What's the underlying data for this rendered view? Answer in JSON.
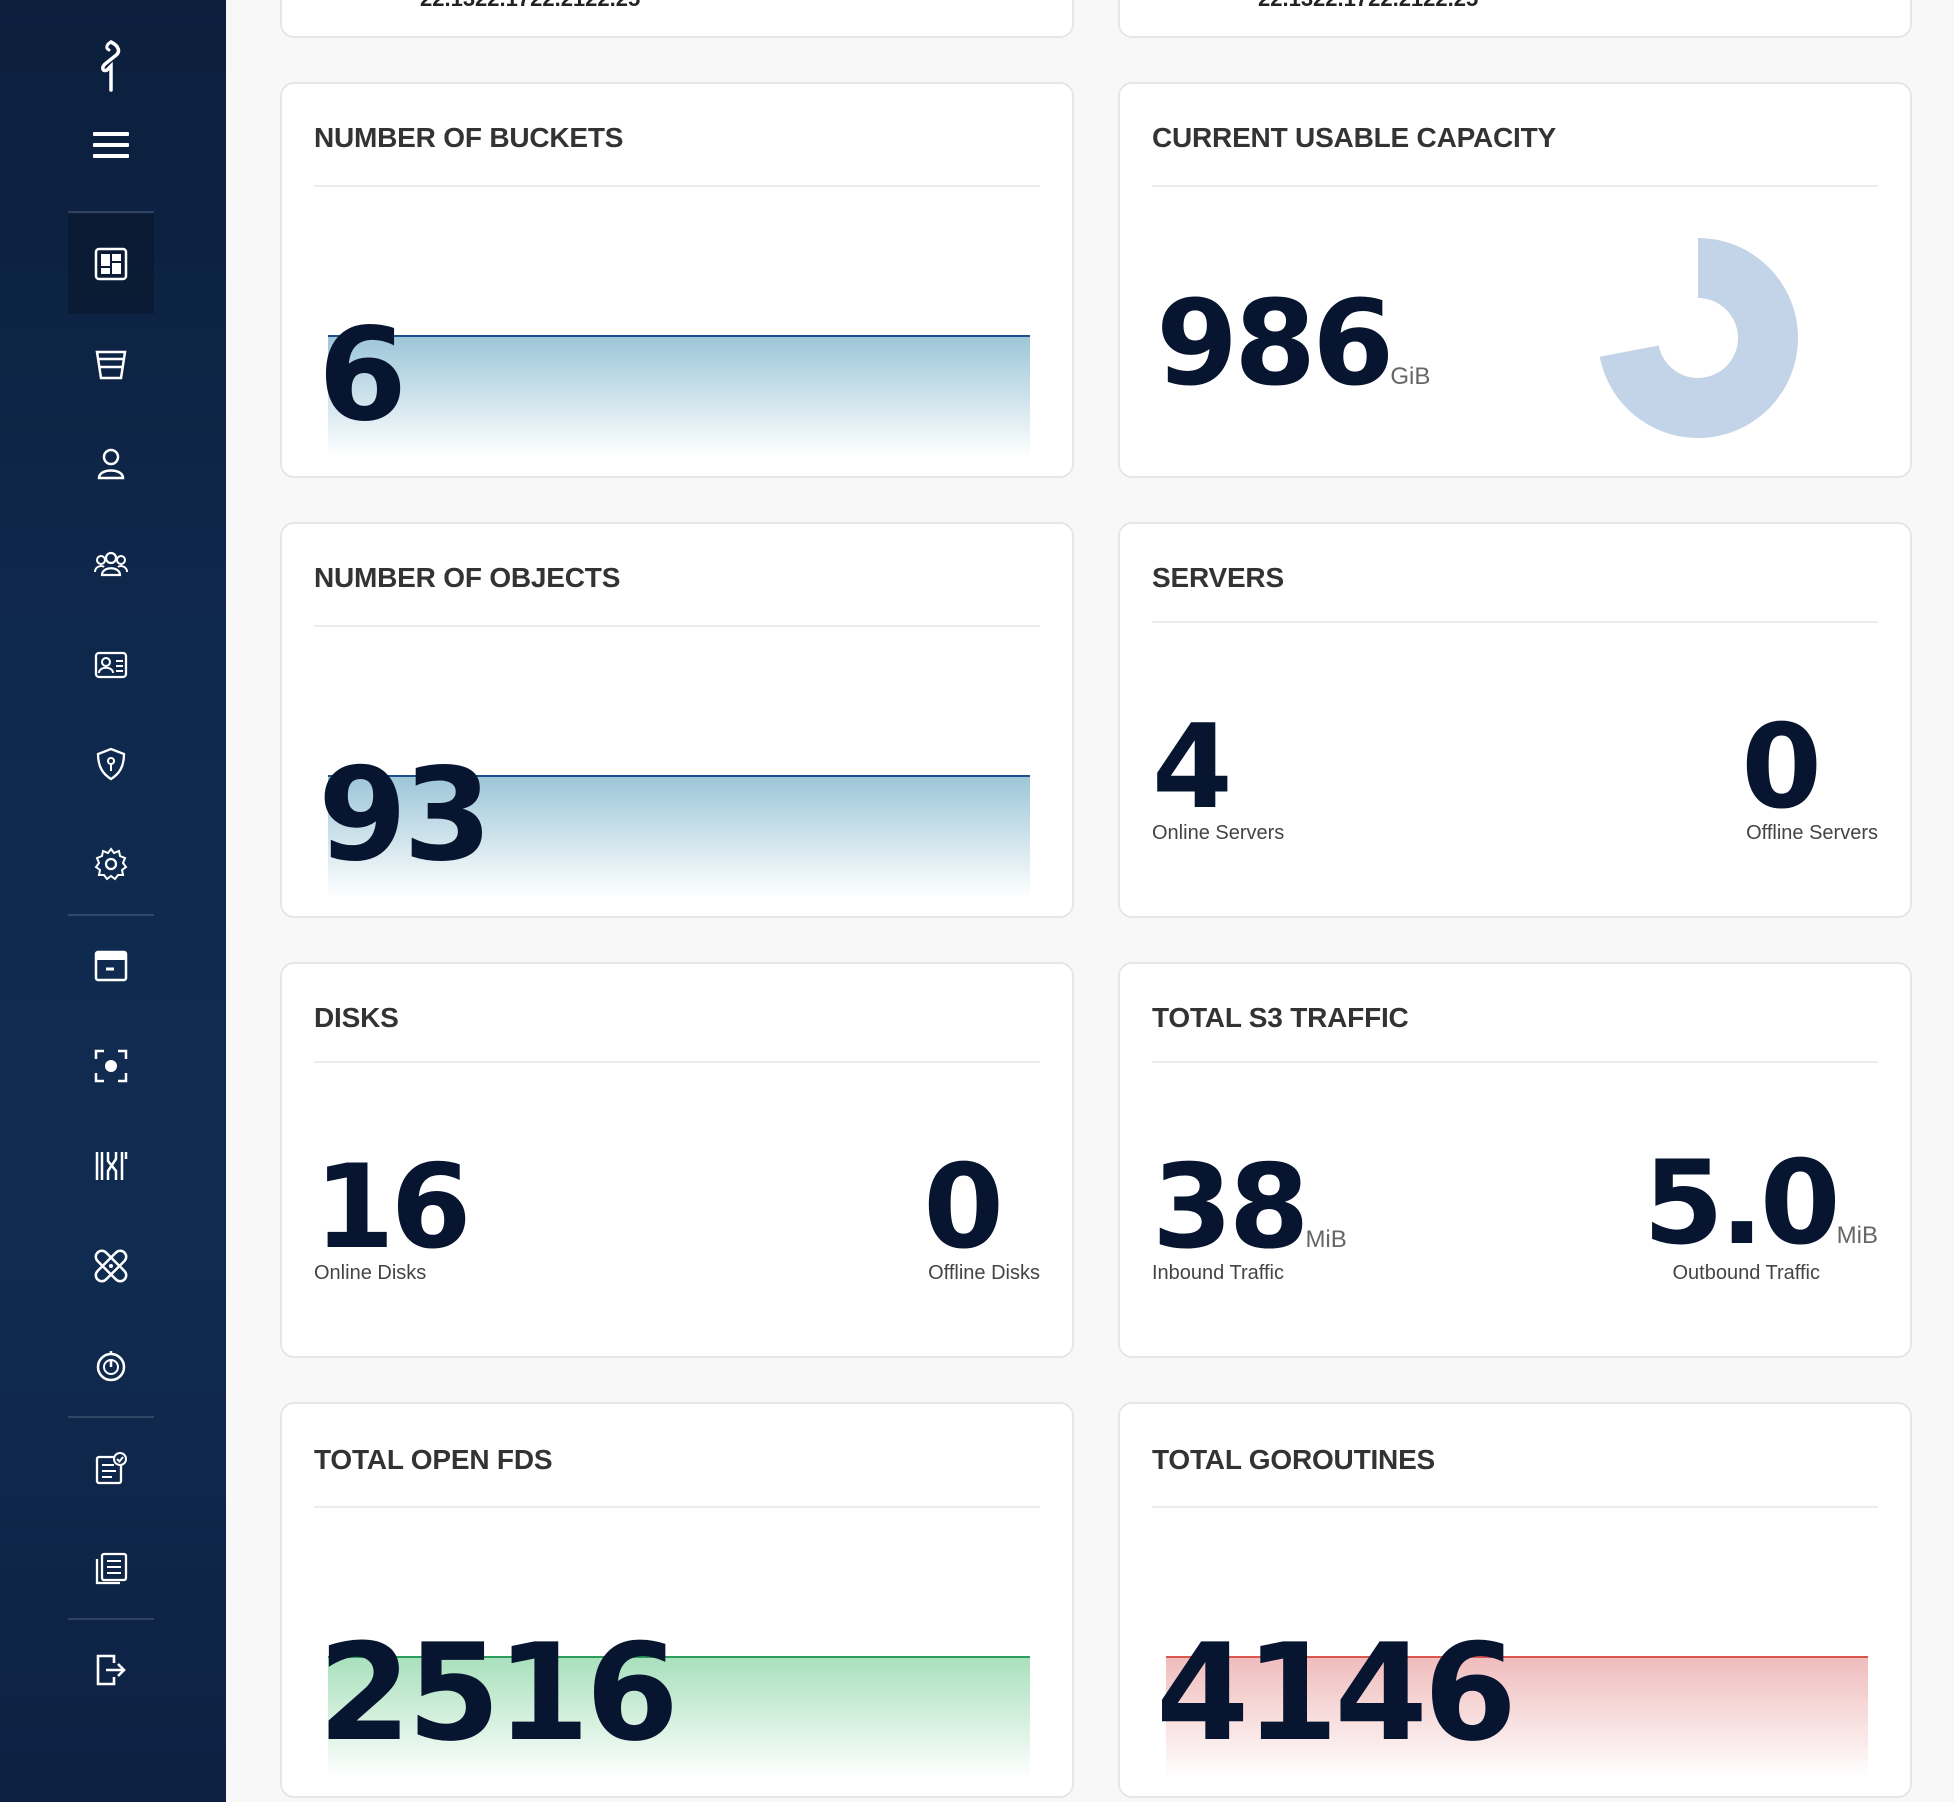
{
  "top_row": {
    "left_partial_text": "22.1322.1722.2122.25",
    "right_partial_text": "22.1322.1722.2122.25"
  },
  "cards": {
    "buckets": {
      "title": "NUMBER OF BUCKETS",
      "value": "6"
    },
    "capacity": {
      "title": "CURRENT USABLE CAPACITY",
      "value": "986",
      "unit": "GiB",
      "usage_fraction": 0.72
    },
    "objects": {
      "title": "NUMBER OF OBJECTS",
      "value": "93"
    },
    "servers": {
      "title": "SERVERS",
      "online": "4",
      "online_label": "Online Servers",
      "offline": "0",
      "offline_label": "Offline Servers"
    },
    "disks": {
      "title": "DISKS",
      "online": "16",
      "online_label": "Online Disks",
      "offline": "0",
      "offline_label": "Offline Disks"
    },
    "traffic": {
      "title": "TOTAL S3 TRAFFIC",
      "inbound": "38",
      "inbound_unit": "MiB",
      "inbound_label": "Inbound Traffic",
      "outbound": "5.0",
      "outbound_unit": "MiB",
      "outbound_label": "Outbound Traffic"
    },
    "fds": {
      "title": "TOTAL OPEN FDS",
      "value": "2516"
    },
    "goroutines": {
      "title": "TOTAL GOROUTINES",
      "value": "4146"
    }
  },
  "colors": {
    "sidebar_bg": "#0f2a4f",
    "buckets_line": "#1c4f8c",
    "buckets_fill": "#9cc6d8",
    "fds_line": "#2f9b5d",
    "fds_fill": "#a8e0bc",
    "goroutines_line": "#d9574f",
    "goroutines_fill": "#f0bcbc",
    "donut": "#c3d3e8"
  },
  "sidebar": {
    "icons": [
      "minio-logo-icon",
      "menu-icon",
      "dashboard-icon",
      "buckets-icon",
      "user-icon",
      "groups-icon",
      "service-accounts-icon",
      "policies-icon",
      "settings-icon",
      "tiers-icon",
      "monitoring-icon",
      "trace-icon",
      "heal-icon",
      "speedtest-icon",
      "license-icon",
      "documentation-icon",
      "logout-icon"
    ]
  }
}
